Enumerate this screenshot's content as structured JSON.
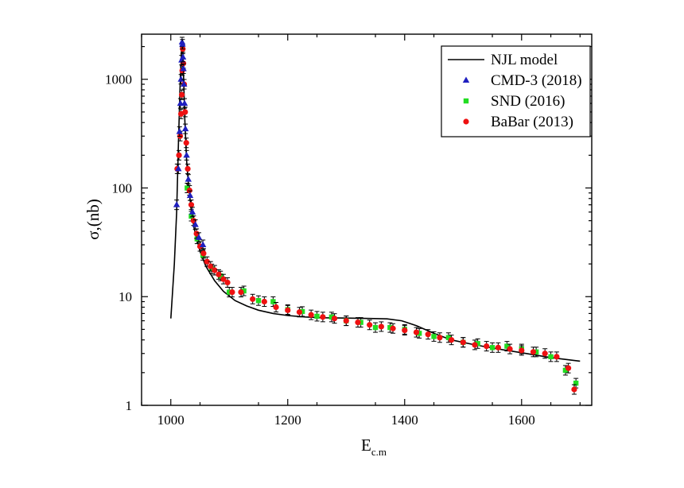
{
  "chart_data": {
    "type": "scatter",
    "ylabel": "σ,(nb)",
    "xlabel_main": "E",
    "xlabel_sub": "c.m",
    "xlim": [
      950,
      1720
    ],
    "ylim": [
      1,
      2600
    ],
    "yscale": "log",
    "x_ticks": [
      1000,
      1200,
      1400,
      1600
    ],
    "x_tick_labels": [
      "1000",
      "1200",
      "1400",
      "1600"
    ],
    "y_ticks": [
      1,
      10,
      100,
      1000
    ],
    "y_tick_labels": [
      "1",
      "10",
      "100",
      "1000"
    ],
    "legend_position": "top-right",
    "colors": {
      "model": "#000000",
      "cmd3": "#1f1fbf",
      "snd": "#22dd22",
      "babar": "#ee1111"
    },
    "series": [
      {
        "name": "NJL model",
        "kind": "line",
        "x": [
          1000,
          1006,
          1010,
          1013,
          1016,
          1018,
          1019.5,
          1020.5,
          1022,
          1024,
          1027,
          1030,
          1035,
          1040,
          1050,
          1060,
          1075,
          1090,
          1110,
          1130,
          1150,
          1175,
          1200,
          1230,
          1260,
          1300,
          1340,
          1370,
          1395,
          1420,
          1450,
          1480,
          1520,
          1560,
          1600,
          1650,
          1700
        ],
        "y": [
          6.3,
          20,
          60,
          250,
          900,
          1700,
          2300,
          2000,
          1000,
          420,
          180,
          110,
          62,
          42,
          26,
          19,
          14,
          11.2,
          9.2,
          8.2,
          7.5,
          7.0,
          6.7,
          6.5,
          6.4,
          6.35,
          6.3,
          6.25,
          6.0,
          5.4,
          4.6,
          4.0,
          3.6,
          3.3,
          3.05,
          2.75,
          2.55
        ]
      },
      {
        "name": "CMD-3 (2018)",
        "kind": "marker",
        "x": [
          1010,
          1013,
          1015,
          1016.5,
          1017.5,
          1018.5,
          1019.3,
          1020,
          1020.8,
          1021.6,
          1022.5,
          1023.5,
          1025,
          1027,
          1030,
          1033,
          1037,
          1042,
          1048,
          1055
        ],
        "y": [
          70,
          150,
          330,
          600,
          1000,
          1500,
          2200,
          2100,
          1600,
          1250,
          900,
          600,
          350,
          200,
          120,
          85,
          60,
          46,
          35,
          30
        ]
      },
      {
        "name": "SND (2016)",
        "kind": "marker",
        "x": [
          1028,
          1035,
          1045,
          1055,
          1070,
          1085,
          1100,
          1125,
          1150,
          1175,
          1200,
          1225,
          1250,
          1275,
          1300,
          1325,
          1350,
          1375,
          1400,
          1425,
          1450,
          1475,
          1500,
          1525,
          1550,
          1575,
          1600,
          1625,
          1650,
          1675,
          1693
        ],
        "y": [
          100,
          55,
          34,
          24,
          18,
          15.5,
          11,
          11.3,
          9.2,
          9.0,
          7.6,
          7.3,
          6.6,
          6.5,
          6.0,
          5.8,
          5.2,
          5.2,
          5.0,
          4.6,
          4.3,
          4.2,
          3.8,
          3.7,
          3.4,
          3.5,
          3.3,
          3.1,
          2.8,
          2.1,
          1.6
        ]
      },
      {
        "name": "BaBar (2013)",
        "kind": "marker",
        "x": [
          1011,
          1014,
          1016,
          1017.5,
          1018.8,
          1019.6,
          1020.5,
          1021.5,
          1022.8,
          1024.5,
          1026.5,
          1029,
          1032,
          1035,
          1039,
          1044,
          1050,
          1056,
          1062,
          1068,
          1075,
          1082,
          1090,
          1097,
          1105,
          1120,
          1140,
          1160,
          1180,
          1200,
          1220,
          1240,
          1260,
          1280,
          1300,
          1320,
          1340,
          1360,
          1380,
          1400,
          1420,
          1440,
          1460,
          1480,
          1500,
          1520,
          1540,
          1560,
          1580,
          1600,
          1620,
          1640,
          1660,
          1680,
          1690
        ],
        "y": [
          150,
          200,
          300,
          480,
          720,
          1200,
          1900,
          1400,
          900,
          500,
          260,
          150,
          95,
          70,
          50,
          38,
          29,
          25,
          21,
          19,
          17.5,
          16,
          14.5,
          13.5,
          11,
          11,
          9.5,
          9.0,
          8.0,
          7.5,
          7.2,
          6.8,
          6.5,
          6.3,
          6.0,
          5.8,
          5.5,
          5.3,
          5.1,
          4.9,
          4.7,
          4.5,
          4.2,
          4.0,
          3.8,
          3.6,
          3.5,
          3.4,
          3.3,
          3.2,
          3.1,
          3.0,
          2.8,
          2.2,
          1.4
        ]
      }
    ]
  }
}
